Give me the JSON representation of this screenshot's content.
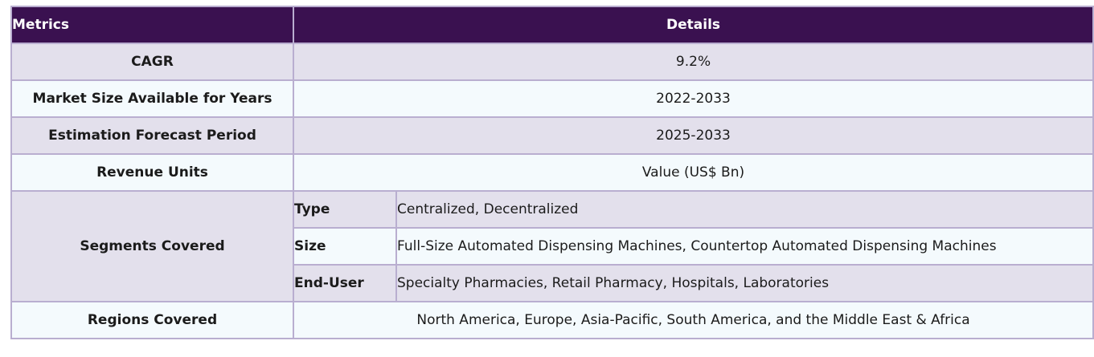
{
  "header": {
    "metrics": "Metrics",
    "details": "Details"
  },
  "rows": [
    {
      "metric": "CAGR",
      "value": "9.2%"
    },
    {
      "metric": "Market Size Available for Years",
      "value": "2022-2033"
    },
    {
      "metric": "Estimation Forecast Period",
      "value": "2025-2033"
    },
    {
      "metric": "Revenue Units",
      "value": "Value (US$ Bn)"
    }
  ],
  "segments": {
    "metric": "Segments Covered",
    "items": [
      {
        "label": "Type",
        "value": "Centralized, Decentralized"
      },
      {
        "label": "Size",
        "value": "Full-Size Automated Dispensing Machines, Countertop Automated Dispensing Machines"
      },
      {
        "label": "End-User",
        "value": "Specialty Pharmacies, Retail Pharmacy, Hospitals, Laboratories"
      }
    ]
  },
  "regions": {
    "metric": "Regions Covered",
    "value": "North America, Europe, Asia-Pacific, South America, and the Middle East & Africa"
  }
}
